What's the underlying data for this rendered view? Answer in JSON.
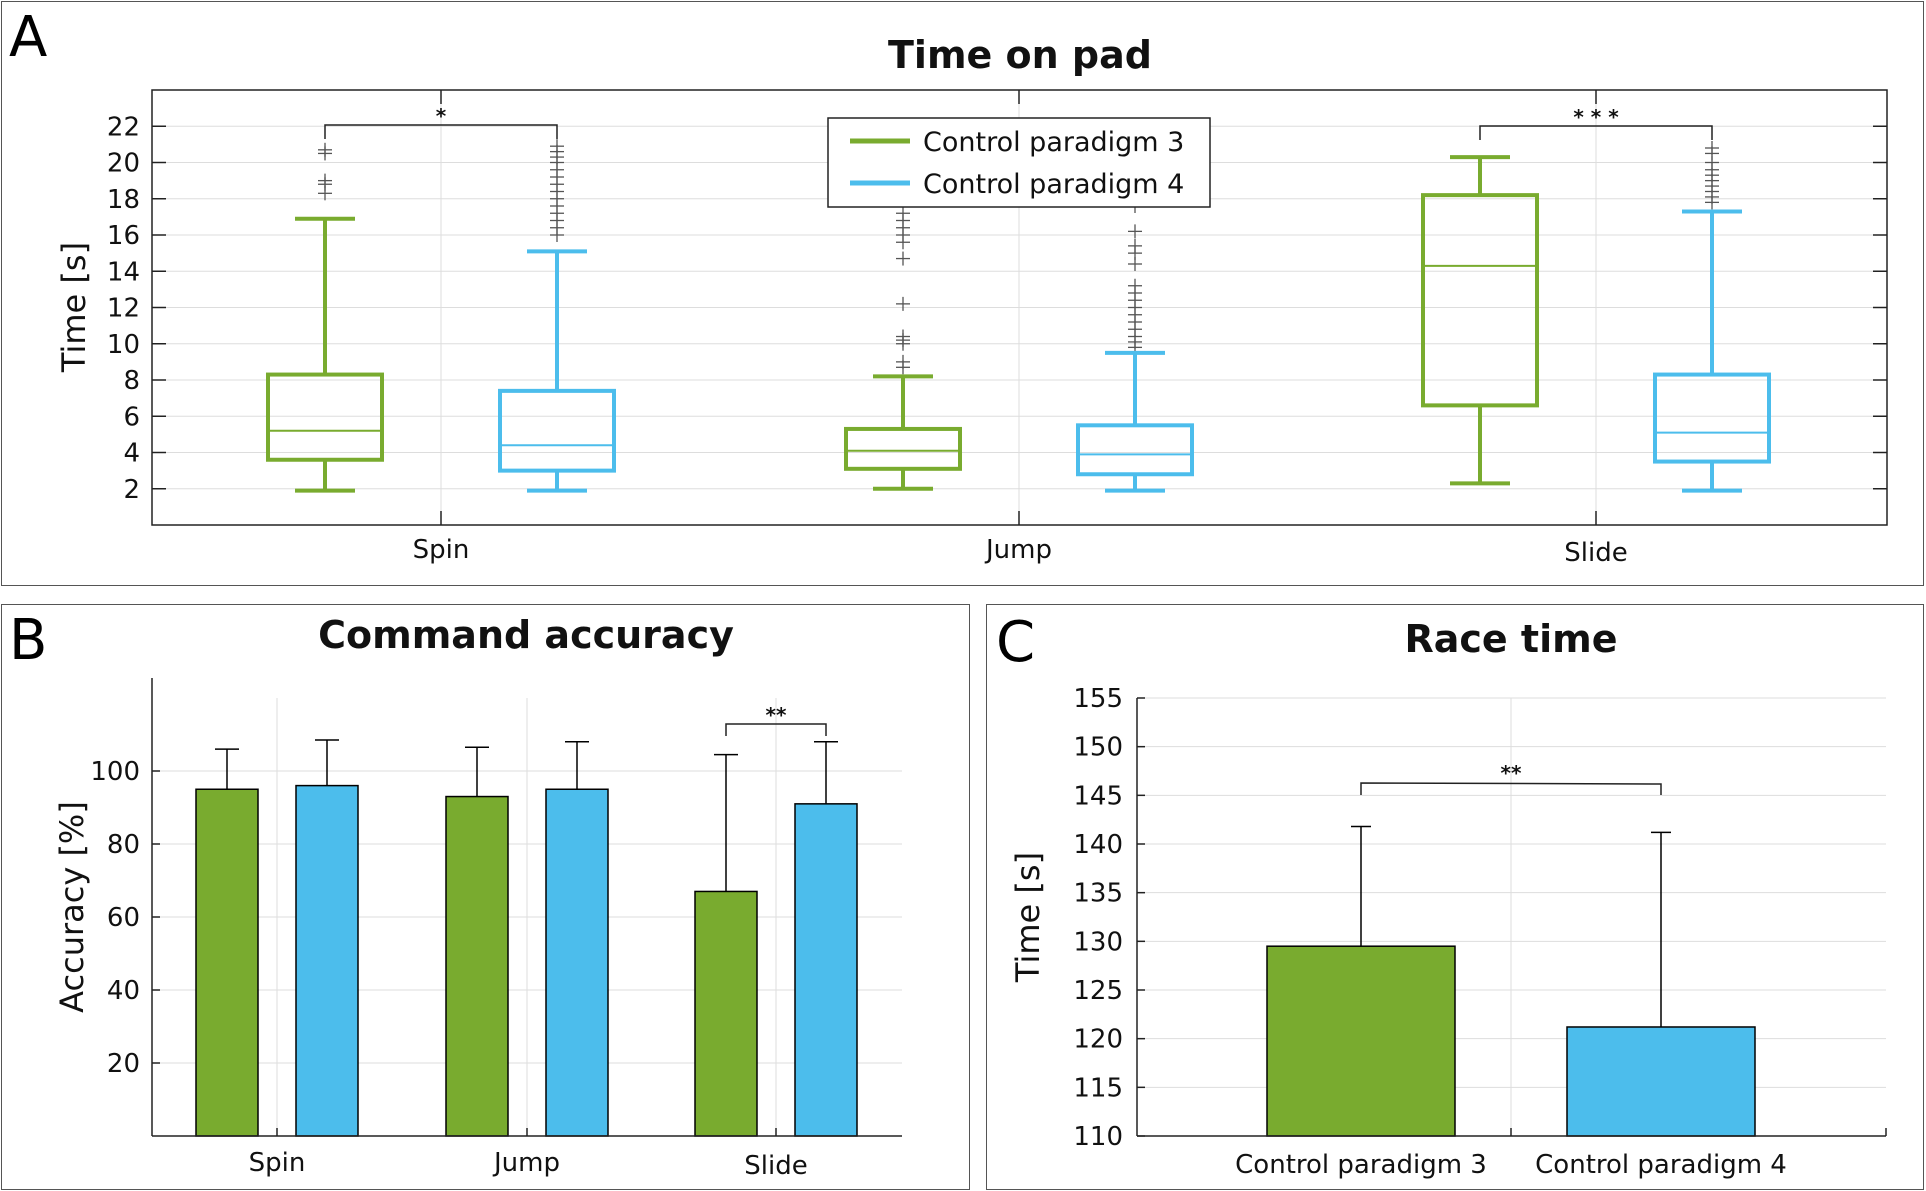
{
  "colors": {
    "paradigm3": "#79ab2f",
    "paradigm4": "#4cbdec",
    "grid": "#dddddd",
    "axis": "#222222",
    "outlier": "#555555"
  },
  "panels": {
    "a": {
      "letter": "A"
    },
    "b": {
      "letter": "B"
    },
    "c": {
      "letter": "C"
    }
  },
  "chart_data": [
    {
      "type": "box",
      "title": "Time on pad",
      "xlabel": "",
      "ylabel": "Time [s]",
      "ylim": [
        0,
        24
      ],
      "yticks": [
        "2",
        "4",
        "6",
        "8",
        "10",
        "12",
        "14",
        "16",
        "18",
        "20",
        "22"
      ],
      "grid": true,
      "legend_position": "top-center",
      "categories": [
        "Spin",
        "Jump",
        "Slide"
      ],
      "series": [
        {
          "name": "Control paradigm 3",
          "boxes": [
            {
              "whisker_low": 1.9,
              "q1": 3.6,
              "median": 5.2,
              "q3": 8.3,
              "whisker_high": 16.9,
              "outliers": [
                18.3,
                18.8,
                19.0,
                20.5,
                20.7
              ]
            },
            {
              "whisker_low": 2.0,
              "q1": 3.1,
              "median": 4.1,
              "q3": 5.3,
              "whisker_high": 8.2,
              "outliers": [
                8.7,
                9.0,
                10.0,
                10.2,
                10.4,
                12.2,
                14.7,
                15.6,
                16.0,
                16.4,
                16.8,
                17.2
              ]
            },
            {
              "whisker_low": 2.3,
              "q1": 6.6,
              "median": 14.3,
              "q3": 18.2,
              "whisker_high": 20.3,
              "outliers": []
            }
          ]
        },
        {
          "name": "Control paradigm 4",
          "boxes": [
            {
              "whisker_low": 1.9,
              "q1": 3.0,
              "median": 4.4,
              "q3": 7.4,
              "whisker_high": 15.1,
              "outliers": [
                16.0,
                16.4,
                16.8,
                17.2,
                17.6,
                18.0,
                18.4,
                18.8,
                19.2,
                19.6,
                20.0,
                20.3,
                20.6,
                20.9
              ]
            },
            {
              "whisker_low": 1.9,
              "q1": 2.8,
              "median": 3.9,
              "q3": 5.5,
              "whisker_high": 9.5,
              "outliers": [
                9.8,
                10.1,
                10.4,
                10.8,
                11.2,
                11.6,
                12.0,
                12.4,
                12.8,
                13.2,
                14.4,
                15.0,
                15.4,
                16.2,
                17.6
              ]
            },
            {
              "whisker_low": 1.9,
              "q1": 3.5,
              "median": 5.1,
              "q3": 8.3,
              "whisker_high": 17.3,
              "outliers": [
                17.8,
                18.1,
                18.4,
                18.7,
                19.0,
                19.3,
                19.6,
                20.0,
                20.5,
                20.8
              ]
            }
          ]
        }
      ],
      "significance": [
        {
          "category": "Spin",
          "label": "*"
        },
        {
          "category": "Slide",
          "label": "* * *"
        }
      ]
    },
    {
      "type": "bar",
      "title": "Command accuracy",
      "xlabel": "",
      "ylabel": "Accuracy [%]",
      "ylim": [
        0,
        120
      ],
      "yticks": [
        "20",
        "40",
        "60",
        "80",
        "100"
      ],
      "grid": true,
      "categories": [
        "Spin",
        "Jump",
        "Slide"
      ],
      "series": [
        {
          "name": "Control paradigm 3",
          "values": [
            95,
            93,
            67
          ],
          "error": [
            11,
            13.5,
            37.5
          ]
        },
        {
          "name": "Control paradigm 4",
          "values": [
            96,
            95,
            91
          ],
          "error": [
            12.5,
            13,
            17
          ]
        }
      ],
      "significance": [
        {
          "category": "Slide",
          "label": "**"
        }
      ]
    },
    {
      "type": "bar",
      "title": "Race time",
      "xlabel": "",
      "ylabel": "Time [s]",
      "ylim": [
        110,
        155
      ],
      "yticks": [
        "110",
        "115",
        "120",
        "125",
        "130",
        "135",
        "140",
        "145",
        "150",
        "155"
      ],
      "grid": true,
      "categories": [
        "Control paradigm 3",
        "Control paradigm 4"
      ],
      "values": [
        129.5,
        121.2
      ],
      "error": [
        12.3,
        20.0
      ],
      "significance": [
        {
          "between": [
            "Control paradigm 3",
            "Control paradigm 4"
          ],
          "label": "**"
        }
      ]
    }
  ]
}
